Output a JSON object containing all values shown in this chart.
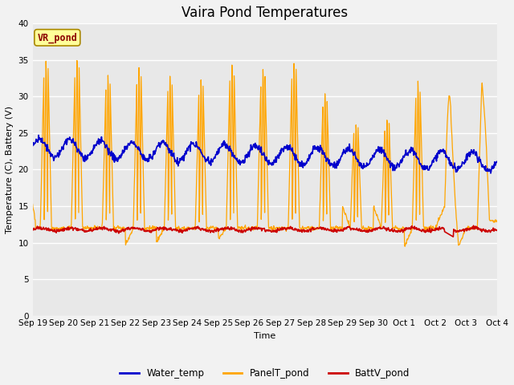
{
  "title": "Vaira Pond Temperatures",
  "xlabel": "Time",
  "ylabel": "Temperature (C), Battery (V)",
  "ylim": [
    0,
    40
  ],
  "yticks": [
    0,
    5,
    10,
    15,
    20,
    25,
    30,
    35,
    40
  ],
  "xtick_labels": [
    "Sep 19",
    "Sep 20",
    "Sep 21",
    "Sep 22",
    "Sep 23",
    "Sep 24",
    "Sep 25",
    "Sep 26",
    "Sep 27",
    "Sep 28",
    "Sep 29",
    "Sep 30",
    "Oct 1",
    "Oct 2",
    "Oct 3",
    "Oct 4"
  ],
  "water_temp_color": "#0000cc",
  "panel_temp_color": "#ffa500",
  "batt_color": "#cc0000",
  "legend_label_water": "Water_temp",
  "legend_label_panel": "PanelT_pond",
  "legend_label_batt": "BattV_pond",
  "annotation_text": "VR_pond",
  "annotation_color": "#8b0000",
  "annotation_bg": "#ffff99",
  "bg_color": "#e8e8e8",
  "grid_color": "#ffffff",
  "title_fontsize": 12,
  "axis_label_fontsize": 8,
  "tick_fontsize": 7.5,
  "legend_fontsize": 8.5
}
